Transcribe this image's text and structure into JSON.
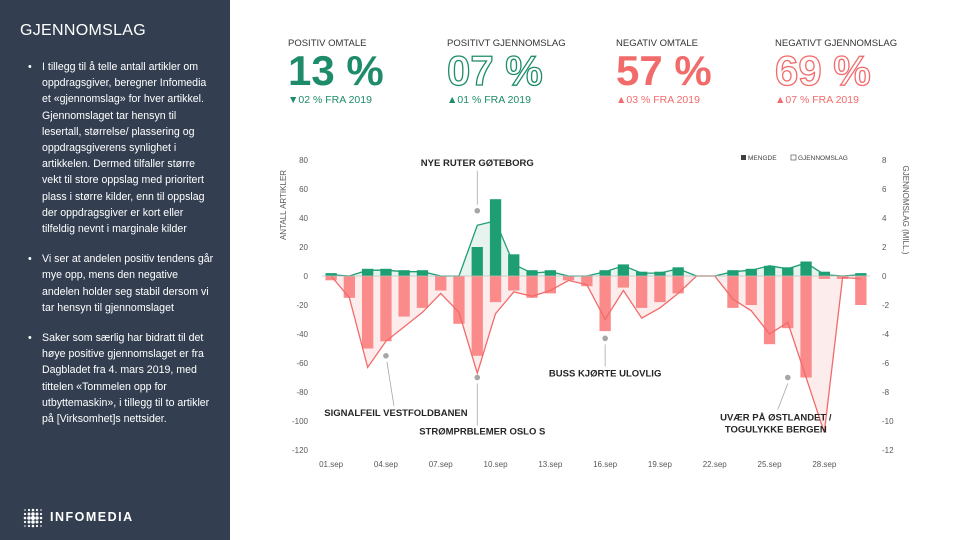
{
  "sidebar": {
    "title": "GJENNOMSLAG",
    "bullets": [
      "I tillegg til å telle antall artikler om oppdragsgiver, beregner Infomedia et «gjennomslag» for hver artikkel. Gjennomslaget tar hensyn til lesertall, størrelse/ plassering og oppdragsgiverens synlighet i artikkelen. Dermed tilfaller større vekt til store oppslag med prioritert plass i større kilder, enn til oppslag der oppdragsgiver er kort eller tilfeldig nevnt i marginale kilder",
      "Vi ser at andelen positiv tendens går mye opp, mens den negative andelen holder seg stabil dersom vi tar hensyn til gjennomslaget",
      "Saker som særlig har bidratt til det høye positive gjennomslaget er fra Dagbladet fra 4. mars 2019, med tittelen «Tommelen opp for utbyttemaskin», i tillegg til to artikler på [Virksomhet]s nettsider."
    ],
    "logo_text": "INFOMEDIA"
  },
  "kpis": [
    {
      "label": "POSITIV OMTALE",
      "value": "13 %",
      "arrow": "▼",
      "change": "02 % FRA 2019",
      "color": "#1e8c6a",
      "outline": false
    },
    {
      "label": "POSITIVT GJENNOMSLAG",
      "value": "07 %",
      "arrow": "▲",
      "change": "01 % FRA 2019",
      "color": "#1e8c6a",
      "outline": true
    },
    {
      "label": "NEGATIV OMTALE",
      "value": "57 %",
      "arrow": "▲",
      "change": "03 % FRA 2019",
      "color": "#f26b6b",
      "outline": false
    },
    {
      "label": "NEGATIVT GJENNOMSLAG",
      "value": "69 %",
      "arrow": "▲",
      "change": "07 % FRA 2019",
      "color": "#f26b6b",
      "outline": true
    }
  ],
  "chart_data": {
    "type": "bar",
    "ylabel": "ANTALL ARTIKLER",
    "y2label": "GJENNOMSLAG (MILL.)",
    "ylim": [
      -120,
      80
    ],
    "y2lim": [
      -12,
      8
    ],
    "yticks": [
      80,
      60,
      40,
      20,
      0,
      -20,
      -40,
      -60,
      -80,
      -100,
      -120
    ],
    "y2ticks": [
      8,
      6,
      4,
      2,
      0,
      -2,
      -4,
      -6,
      -8,
      -10,
      -12
    ],
    "grid": false,
    "legend_position": "top-right",
    "legend": [
      "MENGDE",
      "GJENNOMSLAG"
    ],
    "x_labels": [
      "01.sep",
      "04.sep",
      "07.sep",
      "10.sep",
      "13.sep",
      "16.sep",
      "19.sep",
      "22.sep",
      "25.sep",
      "28.sep"
    ],
    "x_label_days": [
      1,
      4,
      7,
      10,
      13,
      16,
      19,
      22,
      25,
      28
    ],
    "days": [
      1,
      2,
      3,
      4,
      5,
      6,
      7,
      8,
      9,
      10,
      11,
      12,
      13,
      14,
      15,
      16,
      17,
      18,
      19,
      20,
      21,
      22,
      23,
      24,
      25,
      26,
      27,
      28,
      29,
      30
    ],
    "series": [
      {
        "name": "MENGDE",
        "kind": "positive",
        "values": [
          2,
          0,
          5,
          5,
          4,
          4,
          0,
          0,
          20,
          53,
          15,
          4,
          4,
          0,
          0,
          4,
          8,
          3,
          3,
          6,
          0,
          0,
          4,
          5,
          7,
          6,
          10,
          3,
          0,
          2
        ]
      },
      {
        "name": "MENGDE",
        "kind": "negative",
        "values": [
          -3,
          -15,
          -50,
          -45,
          -28,
          -22,
          -10,
          -33,
          -55,
          -18,
          -10,
          -15,
          -12,
          -3,
          -7,
          -38,
          -8,
          -22,
          -18,
          -12,
          0,
          0,
          -22,
          -20,
          -47,
          -36,
          -70,
          -2,
          -2,
          -20
        ]
      },
      {
        "name": "GJENNOMSLAG",
        "kind": "positive",
        "values": [
          0.1,
          0,
          0.4,
          0.4,
          0.3,
          0.3,
          0,
          0,
          3.5,
          3.8,
          0.8,
          0.2,
          0.3,
          0,
          0,
          0.3,
          0.7,
          0.2,
          0.2,
          0.5,
          0,
          0,
          0.3,
          0.4,
          0.7,
          0.5,
          0.9,
          0.1,
          0,
          0.1
        ]
      },
      {
        "name": "GJENNOMSLAG",
        "kind": "negative",
        "values": [
          0,
          -1.5,
          -6.3,
          -4.5,
          -3.5,
          -2.5,
          -1.2,
          -2.5,
          -6.7,
          -2.6,
          -1.1,
          -1.4,
          -1.0,
          -0.3,
          -0.6,
          -3.0,
          -1.0,
          -2.9,
          -2.2,
          -1.2,
          0,
          0,
          -1.6,
          -2.4,
          -4.0,
          -3.2,
          -7.0,
          -10.8,
          -0.1,
          -0.2
        ]
      }
    ],
    "annotations": [
      {
        "text": "NYE RUTER GØTEBORG",
        "day": 9,
        "y2": 4.5
      },
      {
        "text": "BUSS KJØRTE ULOVLIG",
        "day": 16,
        "y2": -4.3
      },
      {
        "text": "SIGNALFEIL VESTFOLDBANEN",
        "day": 4,
        "y2": -5.5
      },
      {
        "text": "STRØMPRBLEMER OSLO S",
        "day": 9,
        "y2": -7.0
      },
      {
        "text": "UVÆR PÅ ØSTLANDET / TOGULYKKE BERGEN",
        "day": 26,
        "y2": -7.0
      }
    ],
    "colors": {
      "positive": "#1e9e73",
      "negative": "#fb8a8a",
      "positive_line": "#1e9e73",
      "negative_line": "#f26b6b"
    }
  }
}
